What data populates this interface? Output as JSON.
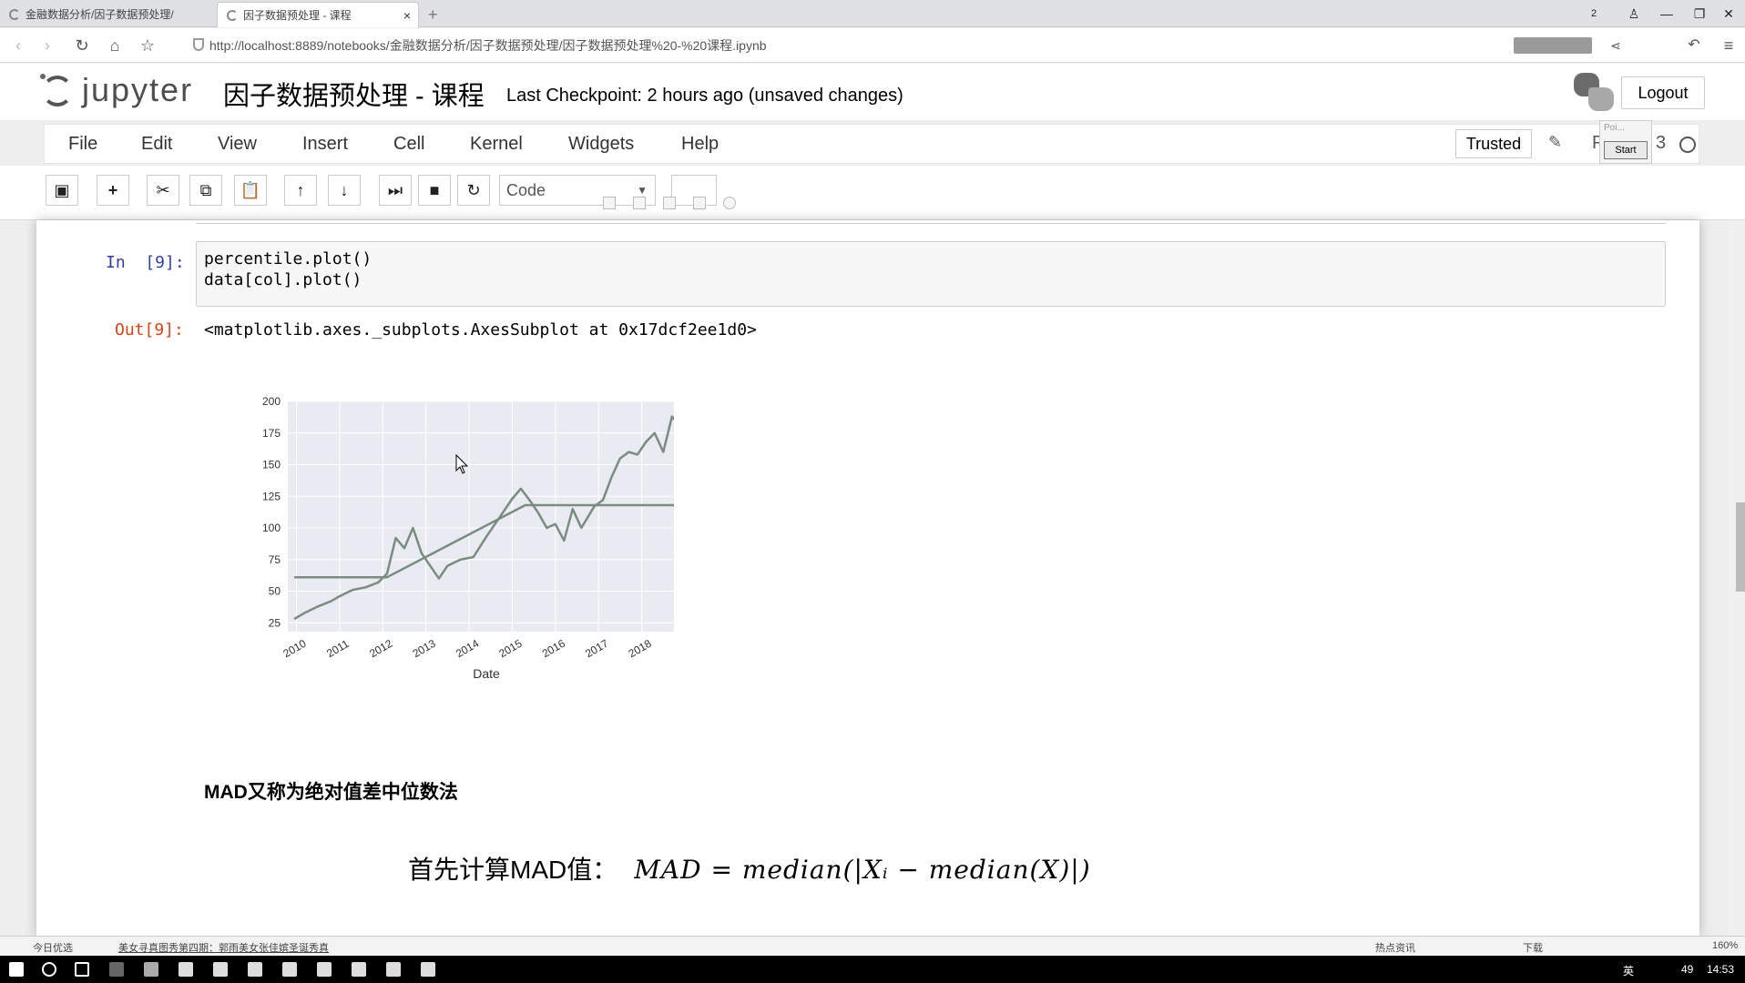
{
  "browser": {
    "tabs": [
      {
        "label": "金融数据分析/因子数据预处理/"
      },
      {
        "label": "因子数据预处理 - 课程"
      }
    ],
    "tab_close": "×",
    "new_tab": "+",
    "url": "http://localhost:8889/notebooks/金融数据分析/因子数据预处理/因子数据预处理%20-%20课程.ipynb",
    "window_controls": {
      "restore_badge": "2",
      "minimize": "—",
      "maximize": "❐",
      "close": "✕"
    }
  },
  "jupyter": {
    "logo_text": "jupyter",
    "notebook_title": "因子数据预处理 - 课程",
    "checkpoint": "Last Checkpoint: 2 hours ago (unsaved changes)",
    "logout_label": "Logout",
    "menu": [
      "File",
      "Edit",
      "View",
      "Insert",
      "Cell",
      "Kernel",
      "Widgets",
      "Help"
    ],
    "trusted_label": "Trusted",
    "kernel_name": "P",
    "kernel_suffix": "3",
    "popup_hint": "Poi...",
    "start_label": "Start",
    "toolbar": {
      "buttons": [
        "save-icon",
        "plus-icon",
        "cut-icon",
        "copy-icon",
        "paste-icon",
        "arrow-up-icon",
        "arrow-down-icon",
        "run-icon",
        "stop-icon",
        "restart-icon"
      ],
      "cell_type": "Code"
    }
  },
  "cells": {
    "in_prompt": "In  [9]:",
    "code_lines": [
      "percentile.plot()",
      "data[col].plot()"
    ],
    "out_prompt": "Out[9]:",
    "out_text": "<matplotlib.axes._subplots.AxesSubplot at 0x17dcf2ee1d0>",
    "markdown_heading": "MAD又称为绝对值差中位数法",
    "formula_label": "首先计算MAD值：",
    "formula_math": "MAD = median(|Xᵢ − median(X)|)"
  },
  "chart_data": {
    "type": "line",
    "xlabel": "Date",
    "ylabel": "",
    "x_tick_labels": [
      "2010",
      "2011",
      "2012",
      "2013",
      "2014",
      "2015",
      "2016",
      "2017",
      "2018"
    ],
    "y_tick_labels": [
      "25",
      "50",
      "75",
      "100",
      "125",
      "150",
      "175",
      "200"
    ],
    "ylim": [
      18,
      200
    ],
    "xlim": [
      2009.8,
      2019.0
    ],
    "grid": true,
    "line_color": "#7a8c80",
    "series": [
      {
        "x": [
          2009.95,
          2010.2,
          2010.5,
          2010.8,
          2011.0,
          2011.3,
          2011.6,
          2011.9,
          2012.1,
          2012.3,
          2012.5,
          2012.7,
          2012.9,
          2013.1,
          2013.3,
          2013.5,
          2013.8,
          2014.1,
          2014.4,
          2014.7,
          2015.0,
          2015.2,
          2015.4,
          2015.6,
          2015.8,
          2016.0,
          2016.2,
          2016.4,
          2016.6,
          2016.9,
          2017.1,
          2017.3,
          2017.5,
          2017.7,
          2017.9,
          2018.1,
          2018.3,
          2018.5,
          2018.7,
          2018.85
        ],
        "values": [
          28,
          33,
          38,
          42,
          46,
          51,
          53,
          57,
          64,
          92,
          84,
          100,
          80,
          70,
          60,
          70,
          75,
          77,
          93,
          108,
          123,
          131,
          122,
          112,
          100,
          103,
          90,
          115,
          100,
          117,
          122,
          140,
          155,
          160,
          158,
          168,
          175,
          160,
          188,
          182
        ]
      },
      {
        "x": [
          2009.95,
          2012.1,
          2012.1,
          2015.3,
          2015.3,
          2016.5,
          2016.5,
          2018.85
        ],
        "values": [
          61,
          61,
          61,
          118,
          118,
          118,
          118,
          118
        ]
      }
    ]
  },
  "statusbar": {
    "left_label": "今日优选",
    "news": "美女寻真图秀第四期：郭雨美女张佳嫔圣诞秀真",
    "right_items": [
      "热点资讯",
      "下载"
    ],
    "zoom": "160%"
  },
  "taskbar": {
    "ime": "英",
    "notif_count": "49",
    "time": "14:53"
  }
}
